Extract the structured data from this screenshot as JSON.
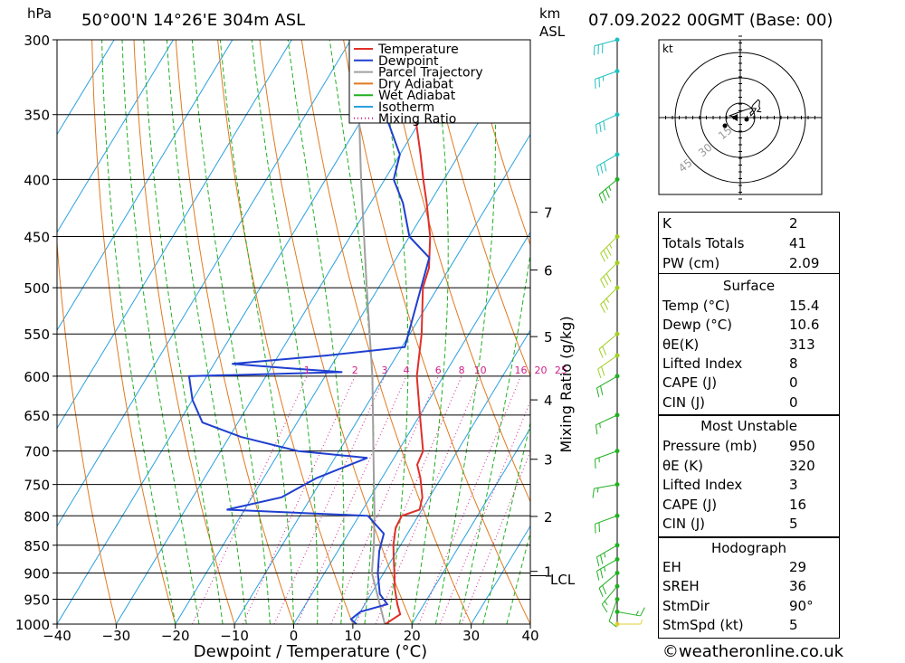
{
  "header": {
    "pressure_unit": "hPa",
    "location": "50°00'N 14°26'E 304m ASL",
    "km_label": "km",
    "asl_label": "ASL",
    "datetime": "07.09.2022 00GMT (Base: 00)"
  },
  "chart_data": {
    "type": "skew-t",
    "xlabel": "Dewpoint / Temperature (°C)",
    "ylabel_right": "Mixing Ratio (g/kg)",
    "x_ticks": [
      -40,
      -30,
      -20,
      -10,
      0,
      10,
      20,
      30,
      40
    ],
    "x_tick_labels": [
      "−40",
      "−30",
      "−20",
      "−10",
      "0",
      "10",
      "20",
      "30",
      "40"
    ],
    "pressure_levels": [
      300,
      350,
      400,
      450,
      500,
      550,
      600,
      650,
      700,
      750,
      800,
      850,
      900,
      950,
      1000
    ],
    "km_ticks": [
      {
        "km": 7,
        "p": 428
      },
      {
        "km": 6,
        "p": 482
      },
      {
        "km": 5,
        "p": 553
      },
      {
        "km": 4,
        "p": 630
      },
      {
        "km": 3,
        "p": 712
      },
      {
        "km": 2,
        "p": 801
      },
      {
        "km": 1,
        "p": 897
      }
    ],
    "lcl_label": "LCL",
    "lcl_pressure": 900,
    "mixing_ratio_labels": [
      "1",
      "2",
      "3",
      "4",
      "6",
      "8",
      "10",
      "16",
      "20",
      "25"
    ],
    "legend": [
      {
        "label": "Temperature",
        "color": "#e0302a",
        "style": "solid"
      },
      {
        "label": "Dewpoint",
        "color": "#1f3fd0",
        "style": "solid"
      },
      {
        "label": "Parcel Trajectory",
        "color": "#a0a0a0",
        "style": "solid"
      },
      {
        "label": "Dry Adiabat",
        "color": "#e07a20",
        "style": "solid"
      },
      {
        "label": "Wet Adiabat",
        "color": "#20b020",
        "style": "solid"
      },
      {
        "label": "Isotherm",
        "color": "#2aa0e0",
        "style": "solid"
      },
      {
        "label": "Mixing Ratio",
        "color": "#d0208a",
        "style": "dotted"
      }
    ],
    "temperature_profile": [
      {
        "p": 1000,
        "t": 15.5
      },
      {
        "p": 980,
        "t": 17.0
      },
      {
        "p": 960,
        "t": 15.5
      },
      {
        "p": 930,
        "t": 13.5
      },
      {
        "p": 900,
        "t": 11.8
      },
      {
        "p": 870,
        "t": 10.0
      },
      {
        "p": 850,
        "t": 8.8
      },
      {
        "p": 820,
        "t": 7.4
      },
      {
        "p": 800,
        "t": 7.2
      },
      {
        "p": 790,
        "t": 9.6
      },
      {
        "p": 770,
        "t": 8.8
      },
      {
        "p": 740,
        "t": 6.5
      },
      {
        "p": 720,
        "t": 4.6
      },
      {
        "p": 700,
        "t": 4.2
      },
      {
        "p": 650,
        "t": 0.0
      },
      {
        "p": 600,
        "t": -4.5
      },
      {
        "p": 550,
        "t": -8.0
      },
      {
        "p": 500,
        "t": -12.5
      },
      {
        "p": 480,
        "t": -13.5
      },
      {
        "p": 450,
        "t": -16.5
      },
      {
        "p": 420,
        "t": -20.5
      },
      {
        "p": 400,
        "t": -23.5
      },
      {
        "p": 380,
        "t": -26.5
      },
      {
        "p": 350,
        "t": -31.5
      },
      {
        "p": 300,
        "t": -40.5
      }
    ],
    "dewpoint_profile": [
      {
        "p": 1000,
        "t": 10.6
      },
      {
        "p": 990,
        "t": 9.2
      },
      {
        "p": 975,
        "t": 10.0
      },
      {
        "p": 960,
        "t": 13.8
      },
      {
        "p": 940,
        "t": 11.5
      },
      {
        "p": 900,
        "t": 9.0
      },
      {
        "p": 860,
        "t": 7.0
      },
      {
        "p": 830,
        "t": 6.0
      },
      {
        "p": 800,
        "t": 1.5
      },
      {
        "p": 790,
        "t": -23.0
      },
      {
        "p": 770,
        "t": -15.0
      },
      {
        "p": 740,
        "t": -11.0
      },
      {
        "p": 710,
        "t": -4.5
      },
      {
        "p": 700,
        "t": -17.0
      },
      {
        "p": 680,
        "t": -28.0
      },
      {
        "p": 660,
        "t": -36.0
      },
      {
        "p": 630,
        "t": -40.0
      },
      {
        "p": 600,
        "t": -43.0
      },
      {
        "p": 595,
        "t": -17.5
      },
      {
        "p": 590,
        "t": -27.5
      },
      {
        "p": 585,
        "t": -37.0
      },
      {
        "p": 575,
        "t": -22.0
      },
      {
        "p": 565,
        "t": -9.5
      },
      {
        "p": 470,
        "t": -14.5
      },
      {
        "p": 450,
        "t": -20.0
      },
      {
        "p": 420,
        "t": -24.5
      },
      {
        "p": 400,
        "t": -28.5
      },
      {
        "p": 380,
        "t": -30.0
      },
      {
        "p": 350,
        "t": -36.5
      },
      {
        "p": 300,
        "t": -48.0
      }
    ],
    "parcel_profile": [
      {
        "p": 1000,
        "t": 15.4
      },
      {
        "p": 900,
        "t": 8.0
      },
      {
        "p": 850,
        "t": 5.5
      },
      {
        "p": 800,
        "t": 2.6
      },
      {
        "p": 700,
        "t": -4.2
      },
      {
        "p": 600,
        "t": -12.0
      },
      {
        "p": 500,
        "t": -22.0
      },
      {
        "p": 400,
        "t": -34.0
      },
      {
        "p": 300,
        "t": -49.0
      }
    ],
    "wind_barbs": [
      {
        "p": 1000,
        "dir": 90,
        "spd": 5
      },
      {
        "p": 975,
        "dir": 100,
        "spd": 15
      },
      {
        "p": 950,
        "dir": 200,
        "spd": 10
      },
      {
        "p": 925,
        "dir": 220,
        "spd": 15
      },
      {
        "p": 900,
        "dir": 230,
        "spd": 20
      },
      {
        "p": 875,
        "dir": 240,
        "spd": 25
      },
      {
        "p": 850,
        "dir": 240,
        "spd": 25
      },
      {
        "p": 800,
        "dir": 250,
        "spd": 20
      },
      {
        "p": 750,
        "dir": 260,
        "spd": 15
      },
      {
        "p": 700,
        "dir": 250,
        "spd": 15
      },
      {
        "p": 650,
        "dir": 245,
        "spd": 15
      },
      {
        "p": 600,
        "dir": 240,
        "spd": 20
      },
      {
        "p": 575,
        "dir": 235,
        "spd": 20
      },
      {
        "p": 550,
        "dir": 230,
        "spd": 20
      },
      {
        "p": 500,
        "dir": 225,
        "spd": 25
      },
      {
        "p": 475,
        "dir": 225,
        "spd": 30
      },
      {
        "p": 450,
        "dir": 225,
        "spd": 35
      },
      {
        "p": 400,
        "dir": 230,
        "spd": 35
      },
      {
        "p": 380,
        "dir": 240,
        "spd": 30
      },
      {
        "p": 350,
        "dir": 245,
        "spd": 30
      },
      {
        "p": 320,
        "dir": 250,
        "spd": 25
      },
      {
        "p": 300,
        "dir": 255,
        "spd": 30
      }
    ]
  },
  "hodograph": {
    "unit_label": "kt",
    "ring_labels": [
      "15",
      "30",
      "45"
    ]
  },
  "indices": {
    "rows": [
      {
        "k": "K",
        "v": "2"
      },
      {
        "k": "Totals Totals",
        "v": "41"
      },
      {
        "k": "PW (cm)",
        "v": "2.09"
      }
    ]
  },
  "surface": {
    "title": "Surface",
    "rows": [
      {
        "k": "Temp (°C)",
        "v": "15.4"
      },
      {
        "k": "Dewp (°C)",
        "v": "10.6"
      },
      {
        "k": "θE(K)",
        "v": "313"
      },
      {
        "k": "Lifted Index",
        "v": "8"
      },
      {
        "k": "CAPE (J)",
        "v": "0"
      },
      {
        "k": "CIN (J)",
        "v": "0"
      }
    ]
  },
  "most_unstable": {
    "title": "Most Unstable",
    "rows": [
      {
        "k": "Pressure (mb)",
        "v": "950"
      },
      {
        "k": "θE (K)",
        "v": "320"
      },
      {
        "k": "Lifted Index",
        "v": "3"
      },
      {
        "k": "CAPE (J)",
        "v": "16"
      },
      {
        "k": "CIN (J)",
        "v": "5"
      }
    ]
  },
  "hodograph_table": {
    "title": "Hodograph",
    "rows": [
      {
        "k": "EH",
        "v": "29"
      },
      {
        "k": "SREH",
        "v": "36"
      },
      {
        "k": "StmDir",
        "v": "90°"
      },
      {
        "k": "StmSpd (kt)",
        "v": "5"
      }
    ]
  },
  "footer": {
    "credit": "©weatheronline.co.uk"
  },
  "colors": {
    "temperature": "#e0302a",
    "dewpoint": "#1f3fd0",
    "parcel": "#a0a0a0",
    "dry": "#e07a20",
    "wet": "#20b020",
    "iso": "#2aa0e0",
    "mix": "#d0208a"
  }
}
